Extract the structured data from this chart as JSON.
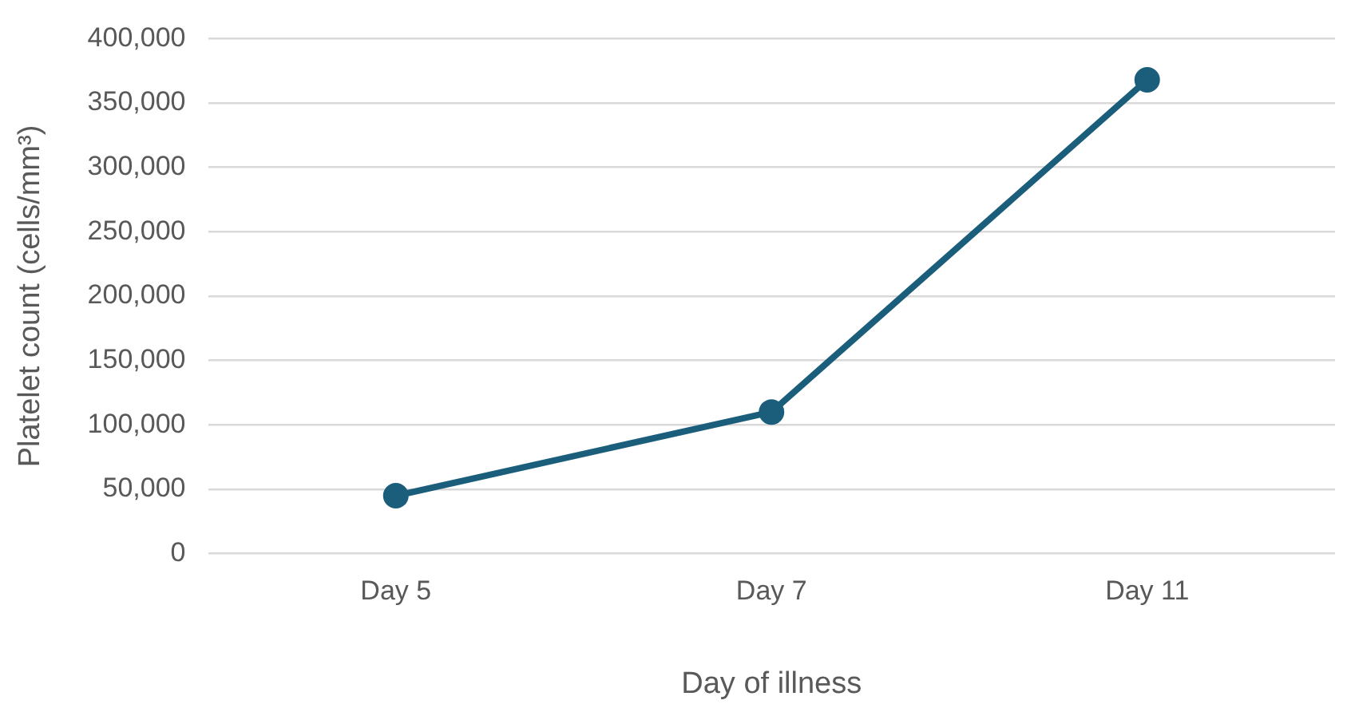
{
  "chart_data": {
    "type": "line",
    "xlabel": "Day of illness",
    "ylabel": "Platelet count (cells/mm³)",
    "categories": [
      "Day 5",
      "Day 7",
      "Day 11"
    ],
    "series": [
      {
        "color": "#1b5e7b",
        "values": [
          45000,
          110000,
          368000
        ]
      }
    ],
    "ylim": [
      0,
      400000
    ],
    "yticks": [
      0,
      {
        "value": 50000,
        "label": "50,000"
      },
      {
        "value": 100000,
        "label": "100,000"
      },
      {
        "value": 150000,
        "label": "150,000"
      },
      {
        "value": 200000,
        "label": "200,000"
      },
      {
        "value": 250000,
        "label": "250,000"
      },
      {
        "value": 300000,
        "label": "300,000"
      },
      {
        "value": 350000,
        "label": "350,000"
      },
      {
        "value": 400000,
        "label": "400,000"
      }
    ],
    "grid": "y",
    "legend": false,
    "marker": "circle",
    "line_style": "solid"
  }
}
